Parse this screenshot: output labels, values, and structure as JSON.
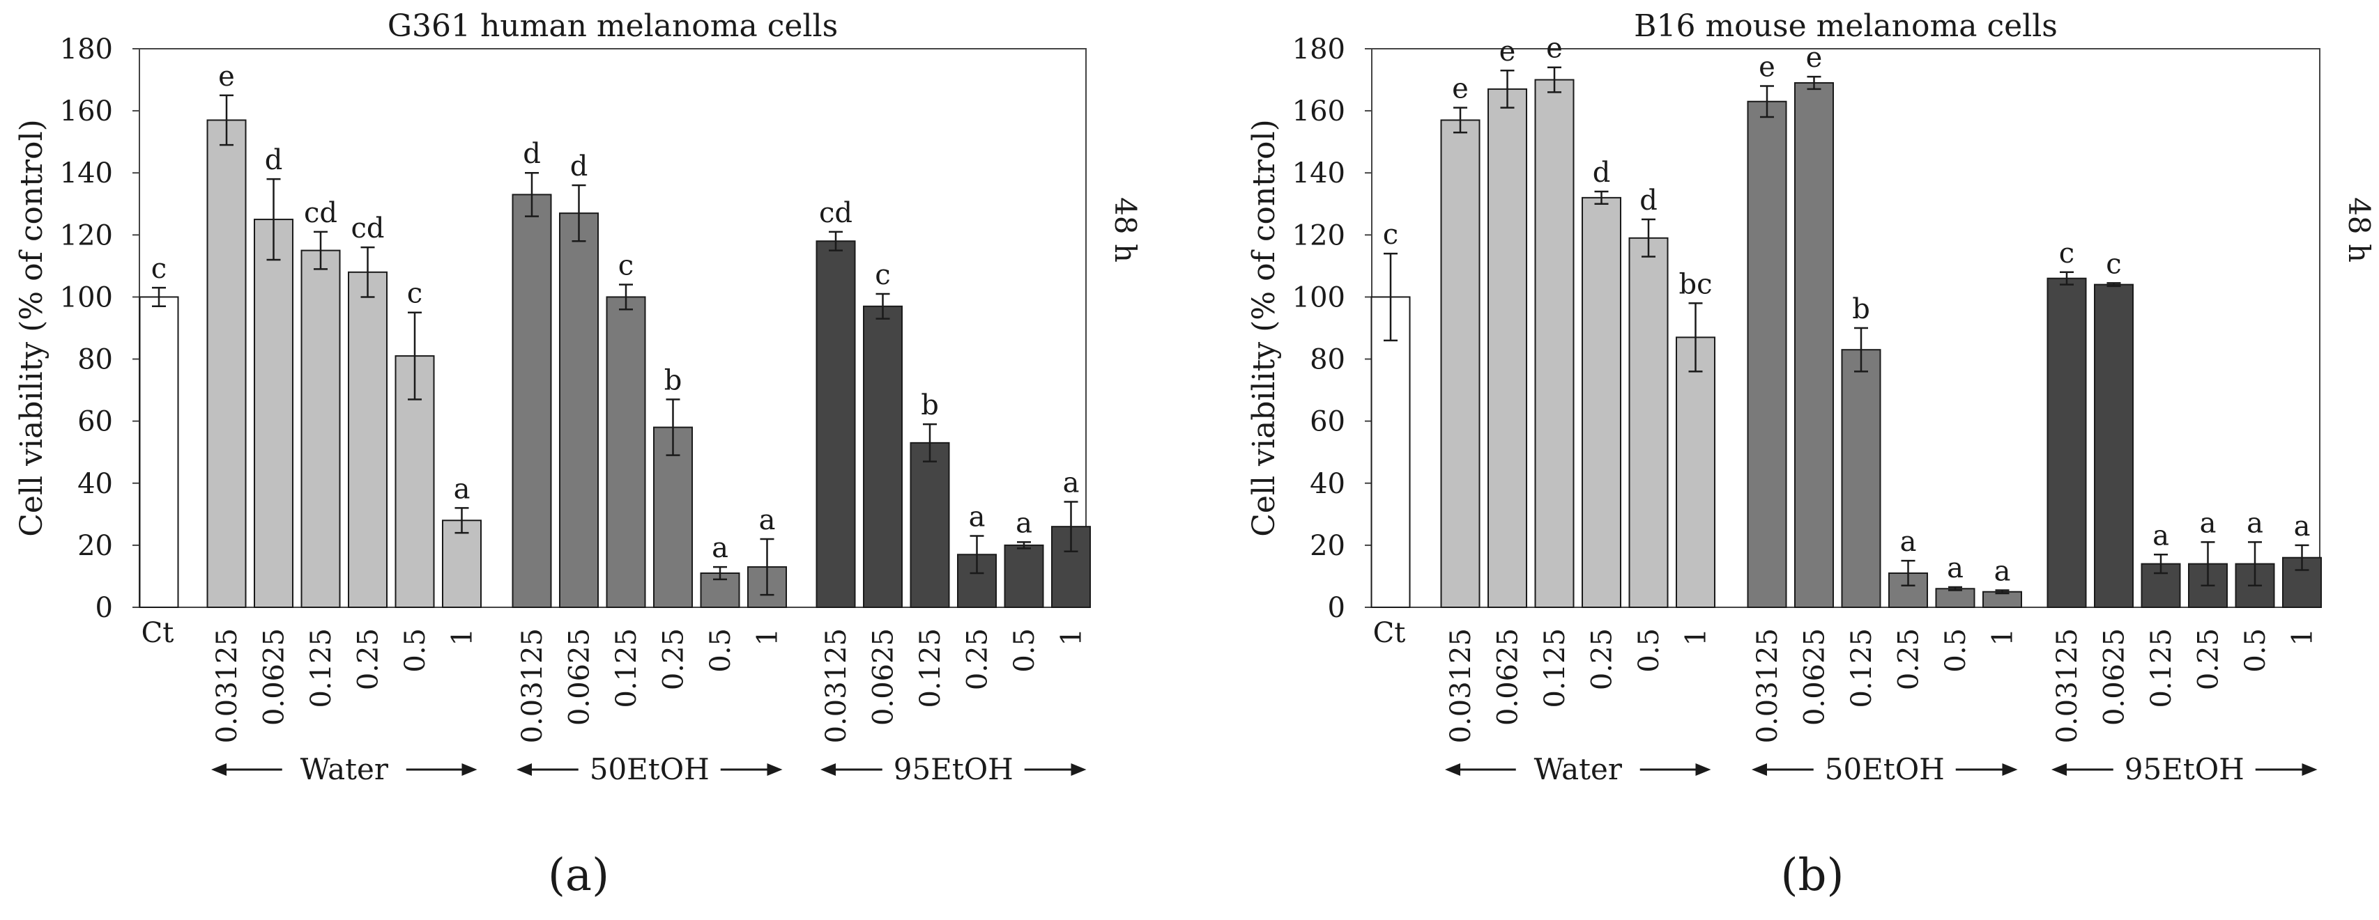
{
  "chart_data": [
    {
      "type": "bar",
      "panel_label": "(a)",
      "title": "G361 human melanoma cells",
      "ylabel": "Cell viability (% of control)",
      "side_label": "48 h",
      "ylim": [
        0,
        180
      ],
      "yticks": [
        0,
        20,
        40,
        60,
        80,
        100,
        120,
        140,
        160,
        180
      ],
      "control": {
        "label": "Ct",
        "value": 100,
        "err": 3,
        "sig": "c"
      },
      "groups": [
        {
          "name": "Water",
          "color": "#c0c0c0",
          "categories": [
            "0.03125",
            "0.0625",
            "0.125",
            "0.25",
            "0.5",
            "1"
          ],
          "values": [
            157,
            125,
            115,
            108,
            81,
            28
          ],
          "errors": [
            8,
            13,
            6,
            8,
            14,
            4
          ],
          "sig": [
            "e",
            "d",
            "cd",
            "cd",
            "c",
            "a"
          ]
        },
        {
          "name": "50EtOH",
          "color": "#7a7a7a",
          "categories": [
            "0.03125",
            "0.0625",
            "0.125",
            "0.25",
            "0.5",
            "1"
          ],
          "values": [
            133,
            127,
            100,
            58,
            11,
            13
          ],
          "errors": [
            7,
            9,
            4,
            9,
            2,
            9
          ],
          "sig": [
            "d",
            "d",
            "c",
            "b",
            "a",
            "a"
          ]
        },
        {
          "name": "95EtOH",
          "color": "#454545",
          "categories": [
            "0.03125",
            "0.0625",
            "0.125",
            "0.25",
            "0.5",
            "1"
          ],
          "values": [
            118,
            97,
            53,
            17,
            20,
            26
          ],
          "errors": [
            3,
            4,
            6,
            6,
            1,
            8
          ],
          "sig": [
            "cd",
            "c",
            "b",
            "a",
            "a",
            "a"
          ]
        }
      ]
    },
    {
      "type": "bar",
      "panel_label": "(b)",
      "title": "B16 mouse melanoma cells",
      "ylabel": "Cell viability (% of control)",
      "side_label": "48 h",
      "ylim": [
        0,
        180
      ],
      "yticks": [
        0,
        20,
        40,
        60,
        80,
        100,
        120,
        140,
        160,
        180
      ],
      "control": {
        "label": "Ct",
        "value": 100,
        "err": 14,
        "sig": "c"
      },
      "groups": [
        {
          "name": "Water",
          "color": "#c0c0c0",
          "categories": [
            "0.03125",
            "0.0625",
            "0.125",
            "0.25",
            "0.5",
            "1"
          ],
          "values": [
            157,
            167,
            170,
            132,
            119,
            87
          ],
          "errors": [
            4,
            6,
            4,
            2,
            6,
            11
          ],
          "sig": [
            "e",
            "e",
            "e",
            "d",
            "d",
            "bc"
          ]
        },
        {
          "name": "50EtOH",
          "color": "#7a7a7a",
          "categories": [
            "0.03125",
            "0.0625",
            "0.125",
            "0.25",
            "0.5",
            "1"
          ],
          "values": [
            163,
            169,
            83,
            11,
            6,
            5
          ],
          "errors": [
            5,
            2,
            7,
            4,
            0.5,
            0.5
          ],
          "sig": [
            "e",
            "e",
            "b",
            "a",
            "a",
            "a"
          ]
        },
        {
          "name": "95EtOH",
          "color": "#454545",
          "categories": [
            "0.03125",
            "0.0625",
            "0.125",
            "0.25",
            "0.5",
            "1"
          ],
          "values": [
            106,
            104,
            14,
            14,
            14,
            16
          ],
          "errors": [
            2,
            0.5,
            3,
            7,
            7,
            4
          ],
          "sig": [
            "c",
            "c",
            "a",
            "a",
            "a",
            "a"
          ]
        }
      ]
    }
  ]
}
